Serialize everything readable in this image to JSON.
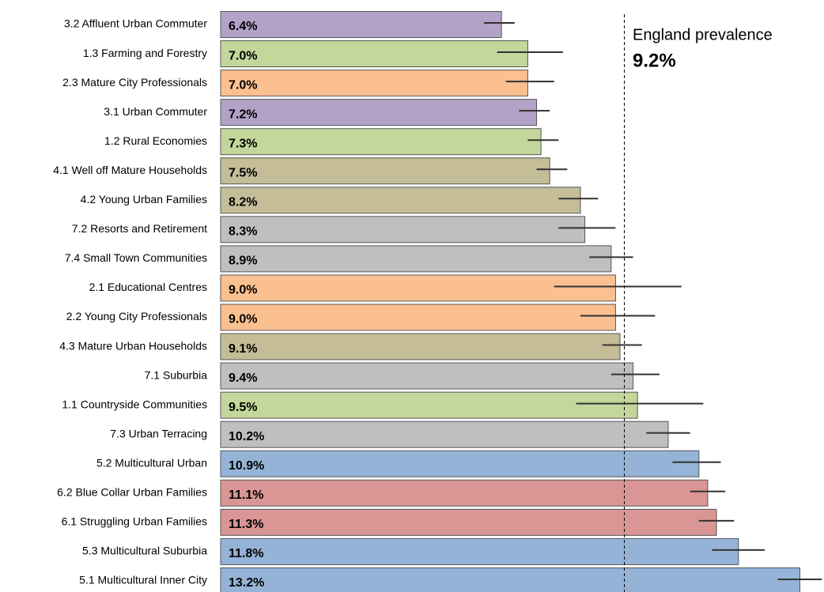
{
  "chart_data": {
    "type": "bar",
    "orientation": "horizontal",
    "categories": [
      "3.2 Affluent Urban Commuter",
      "1.3 Farming and Forestry",
      "2.3 Mature City Professionals",
      "3.1 Urban Commuter",
      "1.2 Rural Economies",
      "4.1 Well off Mature Households",
      "4.2 Young Urban Families",
      "7.2 Resorts and Retirement",
      "7.4 Small Town Communities",
      "2.1 Educational Centres",
      "2.2 Young City Professionals",
      "4.3 Mature Urban Households",
      "7.1 Suburbia",
      "1.1 Countryside Communities",
      "7.3 Urban Terracing",
      "5.2 Multicultural Urban",
      "6.2 Blue Collar Urban Families",
      "6.1 Struggling Urban Families",
      "5.3 Multicultural Suburbia",
      "5.1 Multicultural Inner City"
    ],
    "values": [
      6.4,
      7.0,
      7.0,
      7.2,
      7.3,
      7.5,
      8.2,
      8.3,
      8.9,
      9.0,
      9.0,
      9.1,
      9.4,
      9.5,
      10.2,
      10.9,
      11.1,
      11.3,
      11.8,
      13.2
    ],
    "value_labels": [
      "6.4%",
      "7.0%",
      "7.0%",
      "7.2%",
      "7.3%",
      "7.5%",
      "8.2%",
      "8.3%",
      "8.9%",
      "9.0%",
      "9.0%",
      "9.1%",
      "9.4%",
      "9.5%",
      "10.2%",
      "10.9%",
      "11.1%",
      "11.3%",
      "11.8%",
      "13.2%"
    ],
    "ci_low": [
      6.0,
      6.3,
      6.5,
      6.8,
      7.0,
      7.2,
      7.7,
      7.7,
      8.4,
      7.6,
      8.2,
      8.7,
      8.9,
      8.1,
      9.7,
      10.3,
      10.7,
      10.9,
      11.2,
      12.7
    ],
    "ci_high": [
      6.7,
      7.8,
      7.6,
      7.5,
      7.7,
      7.9,
      8.6,
      9.0,
      9.4,
      10.5,
      9.9,
      9.6,
      10.0,
      11.0,
      10.7,
      11.4,
      11.5,
      11.7,
      12.4,
      13.7
    ],
    "colors": [
      "#b3a2c7",
      "#c3d69b",
      "#fac090",
      "#b3a2c7",
      "#c3d69b",
      "#c4bd97",
      "#c4bd97",
      "#bfbfbf",
      "#bfbfbf",
      "#fac090",
      "#fac090",
      "#c4bd97",
      "#bfbfbf",
      "#c3d69b",
      "#bfbfbf",
      "#95b3d7",
      "#d99694",
      "#d99694",
      "#95b3d7",
      "#95b3d7"
    ],
    "xlim": [
      0,
      13.75
    ],
    "reference": {
      "value": 9.2,
      "label": "England prevalence",
      "value_label": "9.2%"
    }
  }
}
